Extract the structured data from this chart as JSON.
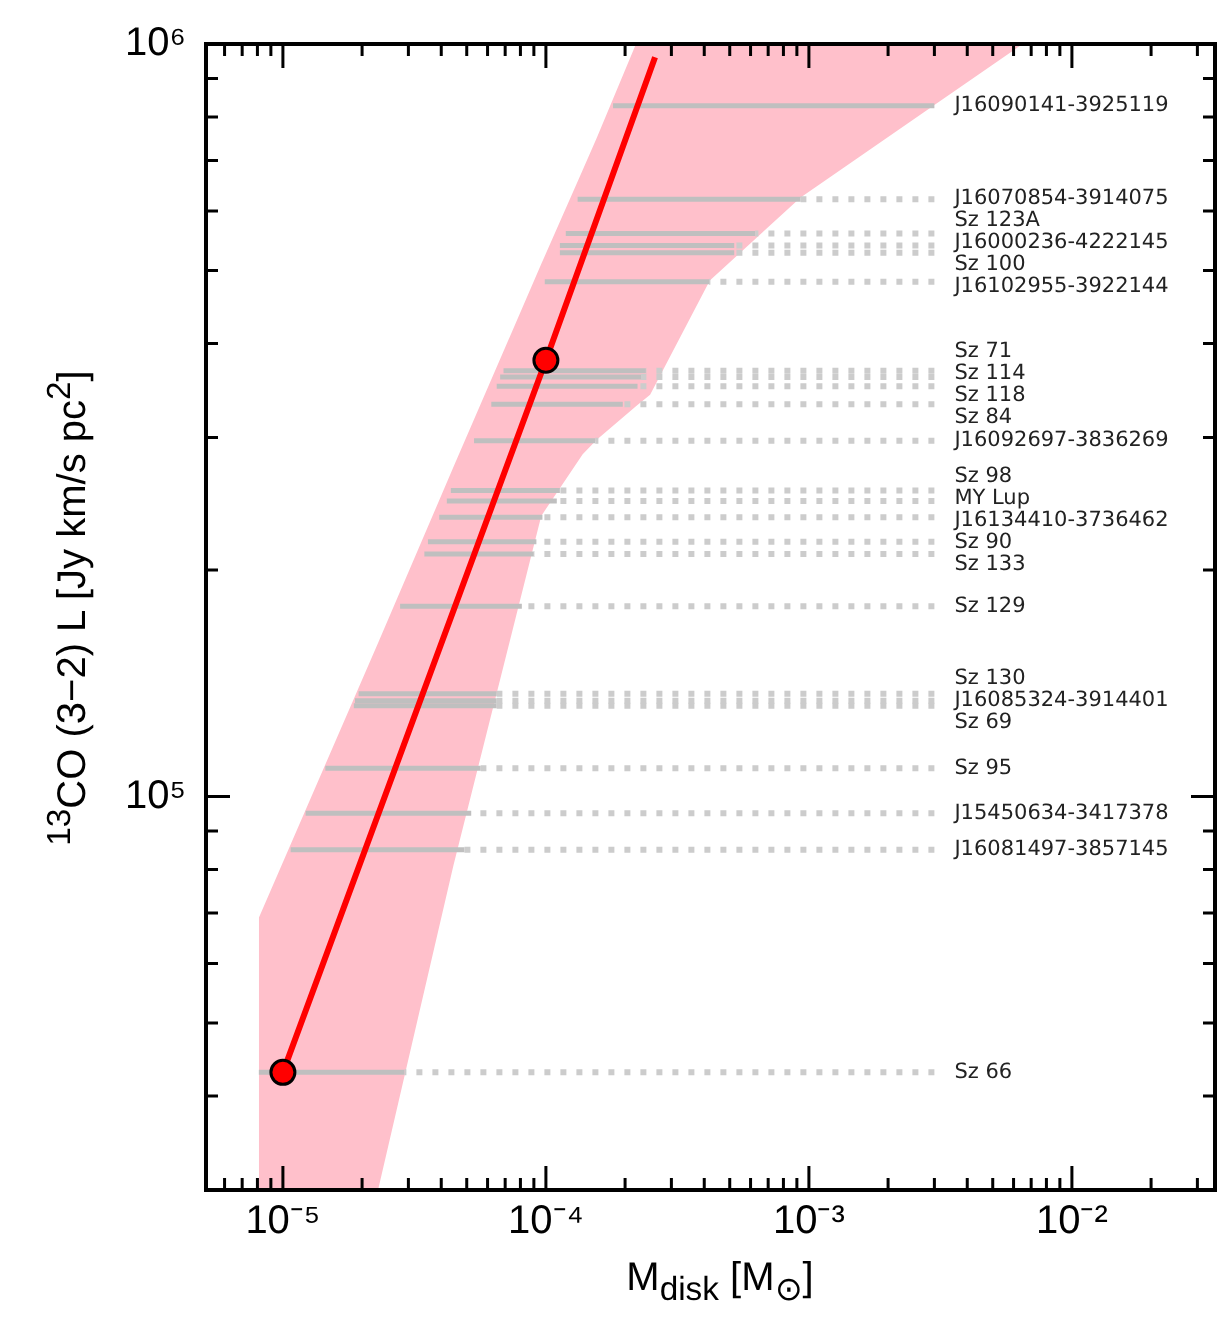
{
  "chart_data": {
    "type": "line",
    "xlabel": "M$_{disk}$ [M$_{⊙}$]",
    "ylabel": "$^{13}$CO (3−2) L [Jy km/s pc$^{2}$]",
    "log": "xy",
    "grid": false,
    "legend": false,
    "xlim": [
      5.1e-06,
      0.035
    ],
    "ylim": [
      30000,
      1000000
    ],
    "xticks": [
      {
        "value": 6e-06,
        "label": null
      },
      {
        "value": 7e-06,
        "label": null
      },
      {
        "value": 8e-06,
        "label": null
      },
      {
        "value": 9e-06,
        "label": null
      },
      {
        "value": 1e-05,
        "label": "10⁻⁵"
      },
      {
        "value": 2e-05,
        "label": null
      },
      {
        "value": 3e-05,
        "label": null
      },
      {
        "value": 4e-05,
        "label": null
      },
      {
        "value": 5e-05,
        "label": null
      },
      {
        "value": 6e-05,
        "label": null
      },
      {
        "value": 7e-05,
        "label": null
      },
      {
        "value": 8e-05,
        "label": null
      },
      {
        "value": 9e-05,
        "label": null
      },
      {
        "value": 0.0001,
        "label": "10⁻⁴"
      },
      {
        "value": 0.0002,
        "label": null
      },
      {
        "value": 0.0003,
        "label": null
      },
      {
        "value": 0.0004,
        "label": null
      },
      {
        "value": 0.0005,
        "label": null
      },
      {
        "value": 0.0006,
        "label": null
      },
      {
        "value": 0.0007,
        "label": null
      },
      {
        "value": 0.0008,
        "label": null
      },
      {
        "value": 0.0009,
        "label": null
      },
      {
        "value": 0.001,
        "label": "10⁻³"
      },
      {
        "value": 0.002,
        "label": null
      },
      {
        "value": 0.003,
        "label": null
      },
      {
        "value": 0.004,
        "label": null
      },
      {
        "value": 0.005,
        "label": null
      },
      {
        "value": 0.006,
        "label": null
      },
      {
        "value": 0.007,
        "label": null
      },
      {
        "value": 0.008,
        "label": null
      },
      {
        "value": 0.009,
        "label": null
      },
      {
        "value": 0.01,
        "label": "10⁻²"
      },
      {
        "value": 0.02,
        "label": null
      },
      {
        "value": 0.03,
        "label": null
      }
    ],
    "yticks": [
      {
        "value": 40000,
        "label": null
      },
      {
        "value": 50000,
        "label": null
      },
      {
        "value": 60000,
        "label": null
      },
      {
        "value": 70000,
        "label": null
      },
      {
        "value": 80000,
        "label": null
      },
      {
        "value": 90000,
        "label": null
      },
      {
        "value": 100000,
        "label": "10⁵"
      },
      {
        "value": 200000,
        "label": null
      },
      {
        "value": 300000,
        "label": null
      },
      {
        "value": 400000,
        "label": null
      },
      {
        "value": 500000,
        "label": null
      },
      {
        "value": 600000,
        "label": null
      },
      {
        "value": 700000,
        "label": null
      },
      {
        "value": 800000,
        "label": null
      },
      {
        "value": 900000,
        "label": null
      },
      {
        "value": 1000000,
        "label": "10⁶"
      }
    ],
    "series": [
      {
        "type": "area",
        "color": "#ffc0cb",
        "x": [
          8.1e-06,
          2.3e-05,
          4.45e-05,
          9.6e-05,
          0.000138,
          0.000156,
          0.00022,
          0.000249,
          0.00042,
          0.00093,
          0.003,
          0.0065
        ],
        "values": [
          null,
          null,
          null,
          null,
          null,
          null,
          null,
          null,
          null,
          null,
          null,
          null
        ],
        "upper": [
          69000,
          160000,
          274000,
          510000,
          680000,
          750000,
          1000000,
          1000000,
          1000000,
          1000000,
          1000000,
          1000000
        ],
        "lower": [
          30000,
          30000,
          81000,
          236000,
          285000,
          298000,
          330000,
          342000,
          485000,
          625000,
          830000,
          1000000
        ]
      },
      {
        "name": "J16090141-3925119",
        "type": "line",
        "color": "#bfbfbf",
        "x": [
          0.00018,
          0.003
        ],
        "values": [
          828000,
          828000
        ]
      },
      {
        "type": "line",
        "color": "#bfbfbf",
        "x": [
          0.000132,
          0.00093
        ],
        "values": [
          622000,
          622000
        ]
      },
      {
        "name": "J16070854-3914075",
        "type": "line",
        "line_style": "dotted",
        "color": "#cccccc",
        "x": [
          0.00093,
          0.003
        ],
        "values": [
          622000,
          622000
        ]
      },
      {
        "type": "line",
        "color": "#bfbfbf",
        "x": [
          0.000119,
          0.000625
        ],
        "values": [
          560000,
          560000
        ]
      },
      {
        "name": "Sz 123A",
        "type": "line",
        "line_style": "dotted",
        "color": "#cccccc",
        "x": [
          0.000625,
          0.003
        ],
        "values": [
          560000,
          560000
        ]
      },
      {
        "type": "line",
        "color": "#bfbfbf",
        "x": [
          0.000113,
          0.00052
        ],
        "values": [
          540000,
          540000
        ]
      },
      {
        "name": "J16000236-4222145",
        "type": "line",
        "line_style": "dotted",
        "color": "#cccccc",
        "x": [
          0.00052,
          0.003
        ],
        "values": [
          540000,
          540000
        ]
      },
      {
        "type": "line",
        "color": "#bfbfbf",
        "x": [
          0.000113,
          0.00052
        ],
        "values": [
          528000,
          528000
        ]
      },
      {
        "name": "Sz 100",
        "type": "line",
        "line_style": "dotted",
        "color": "#cccccc",
        "x": [
          0.00052,
          0.003
        ],
        "values": [
          528000,
          528000
        ]
      },
      {
        "type": "line",
        "color": "#bfbfbf",
        "x": [
          9.9e-05,
          0.000417
        ],
        "values": [
          483000,
          483000
        ]
      },
      {
        "name": "J16102955-3922144",
        "type": "line",
        "line_style": "dotted",
        "color": "#cccccc",
        "x": [
          0.000417,
          0.003
        ],
        "values": [
          483000,
          483000
        ]
      },
      {
        "type": "line",
        "color": "#bfbfbf",
        "x": [
          6.9e-05,
          0.00024
        ],
        "values": [
          368000,
          368000
        ]
      },
      {
        "name": "Sz 71",
        "type": "line",
        "line_style": "dotted",
        "color": "#cccccc",
        "x": [
          0.00024,
          0.003
        ],
        "values": [
          368000,
          368000
        ]
      },
      {
        "type": "line",
        "color": "#bfbfbf",
        "x": [
          6.7e-05,
          0.00023
        ],
        "values": [
          361000,
          361000
        ]
      },
      {
        "name": "Sz 114",
        "type": "line",
        "line_style": "dotted",
        "color": "#cccccc",
        "x": [
          0.00023,
          0.003
        ],
        "values": [
          361000,
          361000
        ]
      },
      {
        "type": "line",
        "color": "#bfbfbf",
        "x": [
          6.5e-05,
          0.000223
        ],
        "values": [
          351000,
          351000
        ]
      },
      {
        "name": "Sz 118",
        "type": "line",
        "line_style": "dotted",
        "color": "#cccccc",
        "x": [
          0.000223,
          0.003
        ],
        "values": [
          351000,
          351000
        ]
      },
      {
        "type": "line",
        "color": "#bfbfbf",
        "x": [
          6.2e-05,
          0.000196
        ],
        "values": [
          332000,
          332000
        ]
      },
      {
        "name": "Sz 84",
        "type": "line",
        "line_style": "dotted",
        "color": "#cccccc",
        "x": [
          0.000196,
          0.003
        ],
        "values": [
          332000,
          332000
        ]
      },
      {
        "type": "line",
        "color": "#bfbfbf",
        "x": [
          5.33e-05,
          0.000154
        ],
        "values": [
          297000,
          297000
        ]
      },
      {
        "name": "J16092697-3836269",
        "type": "line",
        "line_style": "dotted",
        "color": "#cccccc",
        "x": [
          0.000154,
          0.003
        ],
        "values": [
          297000,
          297000
        ]
      },
      {
        "type": "line",
        "color": "#bfbfbf",
        "x": [
          4.35e-05,
          0.000113
        ],
        "values": [
          255000,
          255000
        ]
      },
      {
        "name": "Sz 98",
        "type": "line",
        "line_style": "dotted",
        "color": "#cccccc",
        "x": [
          0.000113,
          0.003
        ],
        "values": [
          255000,
          255000
        ]
      },
      {
        "type": "line",
        "color": "#bfbfbf",
        "x": [
          4.2e-05,
          0.00011
        ],
        "values": [
          247000,
          247000
        ]
      },
      {
        "name": "MY Lup",
        "type": "line",
        "line_style": "dotted",
        "color": "#cccccc",
        "x": [
          0.00011,
          0.003
        ],
        "values": [
          247000,
          247000
        ]
      },
      {
        "type": "line",
        "color": "#bfbfbf",
        "x": [
          3.93e-05,
          9.7e-05
        ],
        "values": [
          235000,
          235000
        ]
      },
      {
        "name": "J16134410-3736462",
        "type": "line",
        "line_style": "dotted",
        "color": "#cccccc",
        "x": [
          9.7e-05,
          0.003
        ],
        "values": [
          235000,
          235000
        ]
      },
      {
        "type": "line",
        "color": "#bfbfbf",
        "x": [
          3.56e-05,
          9.2e-05
        ],
        "values": [
          218000,
          218000
        ]
      },
      {
        "name": "Sz 90",
        "type": "line",
        "line_style": "dotted",
        "color": "#cccccc",
        "x": [
          9.2e-05,
          0.003
        ],
        "values": [
          218000,
          218000
        ]
      },
      {
        "type": "line",
        "color": "#bfbfbf",
        "x": [
          3.45e-05,
          9e-05
        ],
        "values": [
          210000,
          210000
        ]
      },
      {
        "name": "Sz 133",
        "type": "line",
        "line_style": "dotted",
        "color": "#cccccc",
        "x": [
          9e-05,
          0.003
        ],
        "values": [
          210000,
          210000
        ]
      },
      {
        "type": "line",
        "color": "#bfbfbf",
        "x": [
          2.79e-05,
          8.1e-05
        ],
        "values": [
          179000,
          179000
        ]
      },
      {
        "name": "Sz 129",
        "type": "line",
        "line_style": "dotted",
        "color": "#cccccc",
        "x": [
          8.1e-05,
          0.003
        ],
        "values": [
          179000,
          179000
        ]
      },
      {
        "type": "line",
        "color": "#bfbfbf",
        "x": [
          1.94e-05,
          6.5e-05
        ],
        "values": [
          137000,
          137000
        ]
      },
      {
        "name": "Sz 130",
        "type": "line",
        "line_style": "dotted",
        "color": "#cccccc",
        "x": [
          6.5e-05,
          0.003
        ],
        "values": [
          137000,
          137000
        ]
      },
      {
        "type": "line",
        "color": "#bfbfbf",
        "x": [
          1.88e-05,
          6.5e-05
        ],
        "values": [
          134000,
          134000
        ]
      },
      {
        "name": "J16085324-3914401",
        "type": "line",
        "line_style": "dotted",
        "color": "#cccccc",
        "x": [
          6.5e-05,
          0.003
        ],
        "values": [
          134000,
          134000
        ]
      },
      {
        "type": "line",
        "color": "#bfbfbf",
        "x": [
          1.86e-05,
          6.5e-05
        ],
        "values": [
          132000,
          132000
        ]
      },
      {
        "name": "Sz 69",
        "type": "line",
        "line_style": "dotted",
        "color": "#cccccc",
        "x": [
          6.5e-05,
          0.003
        ],
        "values": [
          132000,
          132000
        ]
      },
      {
        "type": "line",
        "color": "#bfbfbf",
        "x": [
          1.45e-05,
          5.65e-05
        ],
        "values": [
          109000,
          109000
        ]
      },
      {
        "name": "Sz 95",
        "type": "line",
        "line_style": "dotted",
        "color": "#cccccc",
        "x": [
          5.65e-05,
          0.003
        ],
        "values": [
          109000,
          109000
        ]
      },
      {
        "type": "line",
        "color": "#bfbfbf",
        "x": [
          1.22e-05,
          5.2e-05
        ],
        "values": [
          95000,
          95000
        ]
      },
      {
        "name": "J15450634-3417378",
        "type": "line",
        "line_style": "dotted",
        "color": "#cccccc",
        "x": [
          5.2e-05,
          0.003
        ],
        "values": [
          95000,
          95000
        ]
      },
      {
        "type": "line",
        "color": "#bfbfbf",
        "x": [
          1.07e-05,
          4.9e-05
        ],
        "values": [
          85000,
          85000
        ]
      },
      {
        "name": "J16081497-3857145",
        "type": "line",
        "line_style": "dotted",
        "color": "#cccccc",
        "x": [
          4.9e-05,
          0.003
        ],
        "values": [
          85000,
          85000
        ]
      },
      {
        "type": "line",
        "color": "#bfbfbf",
        "x": [
          8.1e-06,
          2.9e-05
        ],
        "values": [
          43000,
          43000
        ]
      },
      {
        "name": "Sz 66",
        "type": "line",
        "line_style": "dotted",
        "color": "#cccccc",
        "x": [
          2.9e-05,
          0.003
        ],
        "values": [
          43000,
          43000
        ]
      },
      {
        "type": "line",
        "color": "#ff0000",
        "x": [
          1e-05,
          0.0001,
          0.00026
        ],
        "values": [
          43000,
          380000,
          960000
        ]
      },
      {
        "type": "scatter",
        "marker": "circle",
        "color": "#ff0000",
        "x": [
          1e-05,
          0.0001
        ],
        "values": [
          43000,
          380000
        ]
      }
    ]
  }
}
